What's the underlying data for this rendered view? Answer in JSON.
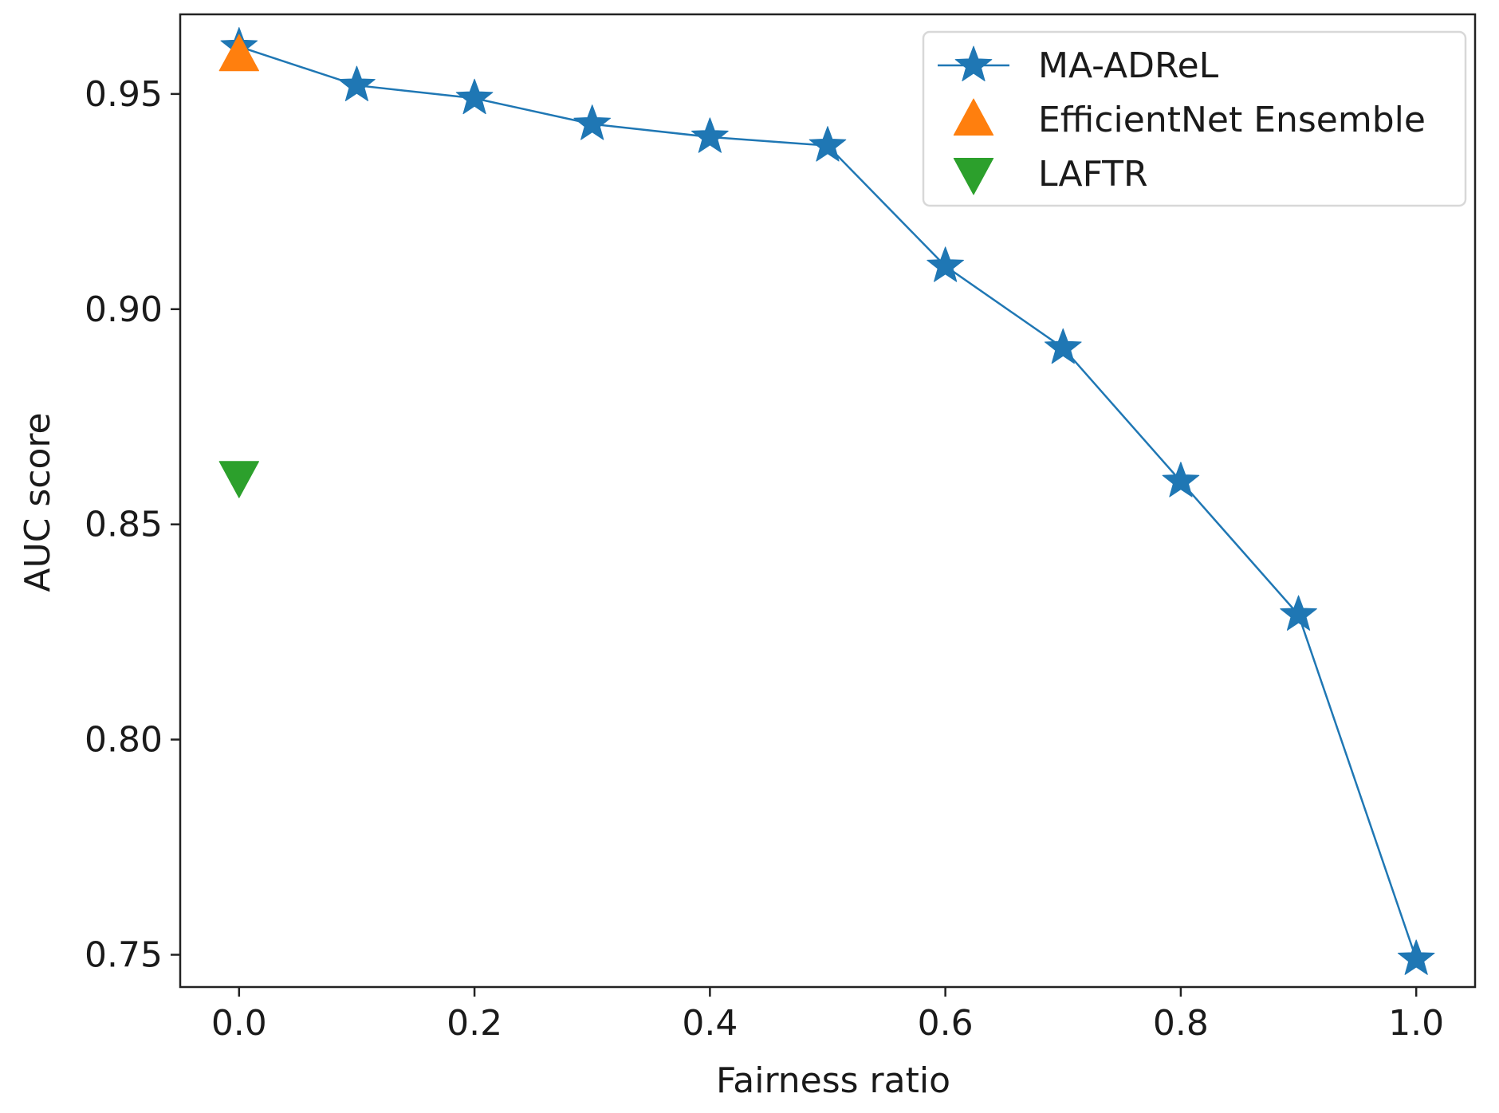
{
  "chart_data": {
    "type": "line",
    "title": "",
    "xlabel": "Fairness ratio",
    "ylabel": "AUC score",
    "xlim": [
      -0.05,
      1.05
    ],
    "ylim": [
      0.7425,
      0.9685
    ],
    "xticks": [
      0.0,
      0.2,
      0.4,
      0.6,
      0.8,
      1.0
    ],
    "xtick_labels": [
      "0.0",
      "0.2",
      "0.4",
      "0.6",
      "0.8",
      "1.0"
    ],
    "yticks": [
      0.75,
      0.8,
      0.85,
      0.9,
      0.95
    ],
    "ytick_labels": [
      "0.75",
      "0.80",
      "0.85",
      "0.90",
      "0.95"
    ],
    "grid": false,
    "legend_position": "top-right",
    "series": [
      {
        "name": "MA-ADReL",
        "marker": "star",
        "line": true,
        "color": "#1f77b4",
        "x": [
          0.0,
          0.1,
          0.2,
          0.3,
          0.4,
          0.5,
          0.6,
          0.7,
          0.8,
          0.9,
          1.0
        ],
        "y": [
          0.961,
          0.952,
          0.949,
          0.943,
          0.94,
          0.938,
          0.91,
          0.891,
          0.86,
          0.829,
          0.749
        ]
      },
      {
        "name": "EfficientNet Ensemble",
        "marker": "triangle-up",
        "line": false,
        "color": "#ff7f0e",
        "x": [
          0.0
        ],
        "y": [
          0.959
        ]
      },
      {
        "name": "LAFTR",
        "marker": "triangle-down",
        "line": false,
        "color": "#2ca02c",
        "x": [
          0.0
        ],
        "y": [
          0.861
        ]
      }
    ]
  }
}
